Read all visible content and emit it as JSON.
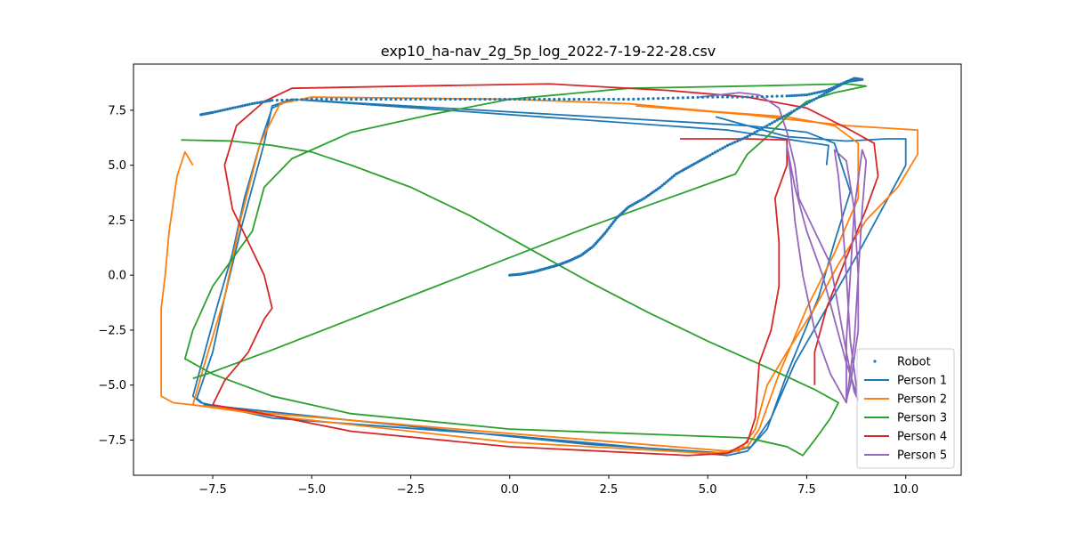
{
  "chart_data": {
    "type": "line",
    "title": "exp10_ha-nav_2g_5p_log_2022-7-19-22-28.csv",
    "xlabel": "",
    "ylabel": "",
    "xlim": [
      -9.5,
      11.4
    ],
    "ylim": [
      -9.1,
      9.6
    ],
    "xticks": [
      -7.5,
      -5.0,
      -2.5,
      0.0,
      2.5,
      5.0,
      7.5,
      10.0
    ],
    "xtick_labels": [
      "−7.5",
      "−5.0",
      "−2.5",
      "0.0",
      "2.5",
      "5.0",
      "7.5",
      "10.0"
    ],
    "yticks": [
      -7.5,
      -5.0,
      -2.5,
      0.0,
      2.5,
      5.0,
      7.5
    ],
    "ytick_labels": [
      "−7.5",
      "−5.0",
      "−2.5",
      "0.0",
      "2.5",
      "5.0",
      "7.5"
    ],
    "grid": false,
    "legend_position": "lower-right",
    "series": [
      {
        "name": "Robot",
        "style": "points",
        "color": "#1f77b4",
        "points": [
          [
            0.0,
            0.0
          ],
          [
            0.3,
            0.05
          ],
          [
            0.6,
            0.15
          ],
          [
            0.9,
            0.3
          ],
          [
            1.2,
            0.45
          ],
          [
            1.5,
            0.65
          ],
          [
            1.8,
            0.9
          ],
          [
            2.1,
            1.3
          ],
          [
            2.4,
            1.9
          ],
          [
            2.7,
            2.6
          ],
          [
            3.0,
            3.1
          ],
          [
            3.4,
            3.5
          ],
          [
            3.8,
            4.0
          ],
          [
            4.2,
            4.6
          ],
          [
            4.6,
            5.0
          ],
          [
            5.0,
            5.4
          ],
          [
            5.5,
            5.9
          ],
          [
            6.0,
            6.3
          ],
          [
            6.5,
            6.8
          ],
          [
            7.0,
            7.3
          ],
          [
            7.5,
            7.8
          ],
          [
            8.0,
            8.3
          ],
          [
            8.4,
            8.7
          ],
          [
            8.7,
            8.95
          ],
          [
            8.9,
            8.9
          ],
          [
            8.5,
            8.8
          ],
          [
            8.0,
            8.4
          ],
          [
            7.5,
            8.2
          ],
          [
            7.0,
            8.15
          ],
          [
            6.0,
            8.1
          ],
          [
            5.0,
            8.1
          ],
          [
            4.0,
            8.05
          ],
          [
            3.0,
            8.0
          ],
          [
            2.0,
            8.0
          ],
          [
            1.0,
            8.0
          ],
          [
            0.0,
            8.0
          ],
          [
            -1.0,
            8.0
          ],
          [
            -2.0,
            8.0
          ],
          [
            -3.0,
            8.0
          ],
          [
            -4.0,
            8.0
          ],
          [
            -5.0,
            8.0
          ],
          [
            -6.0,
            7.95
          ],
          [
            -6.5,
            7.8
          ],
          [
            -7.0,
            7.6
          ],
          [
            -7.5,
            7.4
          ],
          [
            -7.8,
            7.3
          ]
        ]
      },
      {
        "name": "Person 1",
        "style": "line",
        "color": "#1f77b4",
        "points": [
          [
            8.0,
            5.0
          ],
          [
            8.05,
            5.9
          ],
          [
            7.5,
            6.05
          ],
          [
            5.5,
            6.6
          ],
          [
            -5.5,
            8.0
          ],
          [
            -6.0,
            7.6
          ],
          [
            -6.3,
            6.0
          ],
          [
            -6.7,
            3.5
          ],
          [
            -7.0,
            1.0
          ],
          [
            -7.4,
            -1.5
          ],
          [
            -7.7,
            -3.5
          ],
          [
            -8.0,
            -5.5
          ],
          [
            -7.8,
            -5.8
          ],
          [
            -6.0,
            -6.5
          ],
          [
            0.0,
            -7.3
          ],
          [
            5.5,
            -8.2
          ],
          [
            6.0,
            -8.0
          ],
          [
            6.5,
            -7.0
          ],
          [
            7.0,
            -4.5
          ],
          [
            7.8,
            -1.0
          ],
          [
            8.2,
            1.5
          ],
          [
            8.6,
            3.8
          ],
          [
            8.2,
            6.0
          ],
          [
            7.5,
            6.5
          ],
          [
            6.0,
            6.8
          ],
          [
            -5.5,
            8.0
          ],
          [
            -6.0,
            7.7
          ],
          [
            -6.2,
            6.0
          ],
          [
            -6.8,
            2.0
          ],
          [
            -7.2,
            -1.0
          ],
          [
            -7.5,
            -3.5
          ],
          [
            -7.9,
            -5.6
          ],
          [
            -7.7,
            -5.9
          ],
          [
            -4.0,
            -6.6
          ],
          [
            2.0,
            -7.7
          ],
          [
            5.5,
            -8.1
          ],
          [
            6.1,
            -7.8
          ],
          [
            6.6,
            -6.5
          ],
          [
            7.2,
            -4.0
          ],
          [
            8.0,
            -1.5
          ],
          [
            8.8,
            1.0
          ],
          [
            9.4,
            3.0
          ],
          [
            10.0,
            5.0
          ],
          [
            10.0,
            6.2
          ],
          [
            9.5,
            6.2
          ],
          [
            8.5,
            6.1
          ],
          [
            7.0,
            6.3
          ],
          [
            5.2,
            7.2
          ]
        ]
      },
      {
        "name": "Person 2",
        "style": "line",
        "color": "#ff7f0e",
        "points": [
          [
            -8.0,
            5.0
          ],
          [
            -8.2,
            5.6
          ],
          [
            -8.4,
            4.5
          ],
          [
            -8.6,
            2.0
          ],
          [
            -8.7,
            0.0
          ],
          [
            -8.8,
            -1.5
          ],
          [
            -8.8,
            -3.5
          ],
          [
            -8.8,
            -5.5
          ],
          [
            -8.5,
            -5.8
          ],
          [
            -6.0,
            -6.3
          ],
          [
            0.0,
            -7.2
          ],
          [
            5.5,
            -8.0
          ],
          [
            6.0,
            -7.8
          ],
          [
            6.3,
            -7.0
          ],
          [
            6.8,
            -4.5
          ],
          [
            7.5,
            -1.5
          ],
          [
            8.2,
            1.0
          ],
          [
            8.8,
            3.5
          ],
          [
            8.8,
            6.0
          ],
          [
            8.2,
            6.8
          ],
          [
            7.0,
            7.2
          ],
          [
            3.2,
            7.7
          ],
          [
            6.0,
            7.3
          ],
          [
            8.5,
            6.8
          ],
          [
            10.3,
            6.6
          ],
          [
            10.3,
            5.5
          ],
          [
            9.8,
            4.0
          ],
          [
            9.0,
            2.5
          ],
          [
            8.3,
            0.5
          ],
          [
            7.7,
            -1.5
          ],
          [
            7.0,
            -3.5
          ],
          [
            6.5,
            -5.0
          ],
          [
            6.2,
            -7.0
          ],
          [
            5.8,
            -8.0
          ],
          [
            5.0,
            -8.1
          ],
          [
            0.0,
            -7.6
          ],
          [
            -6.0,
            -6.4
          ],
          [
            -8.0,
            -5.9
          ],
          [
            -7.7,
            -4.0
          ],
          [
            -7.2,
            -1.0
          ],
          [
            -6.8,
            2.5
          ],
          [
            -6.3,
            6.0
          ],
          [
            -5.8,
            7.8
          ],
          [
            -5.0,
            8.1
          ],
          [
            0.0,
            8.0
          ],
          [
            3.0,
            7.8
          ],
          [
            6.0,
            7.3
          ]
        ]
      },
      {
        "name": "Person 3",
        "style": "line",
        "color": "#2ca02c",
        "points": [
          [
            -8.3,
            6.15
          ],
          [
            -7.0,
            6.1
          ],
          [
            -6.0,
            5.9
          ],
          [
            -5.0,
            5.6
          ],
          [
            -4.0,
            5.0
          ],
          [
            -2.5,
            4.0
          ],
          [
            -1.0,
            2.7
          ],
          [
            0.5,
            1.2
          ],
          [
            2.0,
            -0.3
          ],
          [
            3.5,
            -1.7
          ],
          [
            5.0,
            -3.0
          ],
          [
            6.5,
            -4.2
          ],
          [
            7.7,
            -5.2
          ],
          [
            8.3,
            -5.8
          ],
          [
            8.1,
            -6.5
          ],
          [
            7.7,
            -7.5
          ],
          [
            7.4,
            -8.2
          ],
          [
            7.0,
            -7.8
          ],
          [
            6.5,
            -7.6
          ],
          [
            6.0,
            -7.4
          ],
          [
            0.0,
            -7.0
          ],
          [
            -4.0,
            -6.3
          ],
          [
            -6.0,
            -5.5
          ],
          [
            -7.5,
            -4.5
          ],
          [
            -8.2,
            -3.8
          ],
          [
            -8.0,
            -2.5
          ],
          [
            -7.5,
            -0.5
          ],
          [
            -6.5,
            2.0
          ],
          [
            -6.2,
            4.0
          ],
          [
            -5.5,
            5.3
          ],
          [
            -4.0,
            6.5
          ],
          [
            -2.0,
            7.3
          ],
          [
            0.0,
            8.0
          ],
          [
            3.0,
            8.5
          ],
          [
            6.0,
            8.6
          ],
          [
            8.5,
            8.7
          ],
          [
            9.0,
            8.6
          ],
          [
            8.2,
            8.3
          ],
          [
            7.5,
            7.9
          ],
          [
            7.0,
            7.2
          ],
          [
            6.5,
            6.3
          ],
          [
            6.0,
            5.5
          ],
          [
            5.7,
            4.6
          ],
          [
            4.0,
            3.5
          ],
          [
            2.0,
            2.2
          ],
          [
            0.0,
            0.8
          ],
          [
            -2.0,
            -0.6
          ],
          [
            -4.0,
            -2.0
          ],
          [
            -6.0,
            -3.4
          ],
          [
            -7.5,
            -4.4
          ],
          [
            -8.0,
            -4.7
          ]
        ]
      },
      {
        "name": "Person 4",
        "style": "line",
        "color": "#d62728",
        "points": [
          [
            4.3,
            6.2
          ],
          [
            6.0,
            6.2
          ],
          [
            7.0,
            6.15
          ],
          [
            7.0,
            5.0
          ],
          [
            6.7,
            3.5
          ],
          [
            6.8,
            1.5
          ],
          [
            6.8,
            -0.5
          ],
          [
            6.6,
            -2.5
          ],
          [
            6.3,
            -4.0
          ],
          [
            6.2,
            -6.5
          ],
          [
            6.0,
            -7.6
          ],
          [
            5.5,
            -8.1
          ],
          [
            4.5,
            -8.2
          ],
          [
            0.0,
            -7.8
          ],
          [
            -4.0,
            -7.1
          ],
          [
            -6.5,
            -6.2
          ],
          [
            -7.5,
            -5.9
          ],
          [
            -7.2,
            -4.8
          ],
          [
            -6.6,
            -3.5
          ],
          [
            -6.2,
            -2.0
          ],
          [
            -6.0,
            -1.5
          ],
          [
            -6.2,
            0.0
          ],
          [
            -6.6,
            1.5
          ],
          [
            -7.0,
            3.0
          ],
          [
            -7.2,
            5.0
          ],
          [
            -6.9,
            6.8
          ],
          [
            -6.2,
            7.9
          ],
          [
            -5.5,
            8.5
          ],
          [
            -2.5,
            8.6
          ],
          [
            1.0,
            8.7
          ],
          [
            4.0,
            8.4
          ],
          [
            6.0,
            8.1
          ],
          [
            7.5,
            7.6
          ],
          [
            8.5,
            6.7
          ],
          [
            9.2,
            6.0
          ],
          [
            9.3,
            4.5
          ],
          [
            9.0,
            3.0
          ],
          [
            8.5,
            0.8
          ],
          [
            8.0,
            -1.5
          ],
          [
            7.7,
            -3.5
          ],
          [
            7.7,
            -5.0
          ]
        ]
      },
      {
        "name": "Person 5",
        "style": "line",
        "color": "#9467bd",
        "points": [
          [
            4.8,
            8.1
          ],
          [
            5.8,
            8.3
          ],
          [
            6.3,
            8.2
          ],
          [
            6.8,
            7.6
          ],
          [
            7.0,
            6.5
          ],
          [
            7.2,
            5.0
          ],
          [
            7.3,
            3.5
          ],
          [
            7.7,
            2.0
          ],
          [
            8.1,
            0.5
          ],
          [
            8.3,
            -1.5
          ],
          [
            8.5,
            -3.5
          ],
          [
            8.7,
            -5.3
          ],
          [
            8.8,
            -5.7
          ],
          [
            8.6,
            -3.0
          ],
          [
            8.5,
            0.0
          ],
          [
            8.4,
            2.5
          ],
          [
            8.3,
            4.5
          ],
          [
            8.2,
            5.7
          ],
          [
            8.5,
            5.2
          ],
          [
            8.7,
            3.0
          ],
          [
            8.8,
            0.0
          ],
          [
            8.8,
            -2.5
          ],
          [
            8.6,
            -5.0
          ],
          [
            8.5,
            -5.7
          ],
          [
            8.5,
            -3.0
          ],
          [
            8.6,
            0.0
          ],
          [
            8.7,
            3.0
          ],
          [
            8.9,
            5.7
          ],
          [
            9.0,
            5.2
          ],
          [
            8.9,
            3.0
          ],
          [
            8.8,
            0.0
          ],
          [
            8.7,
            -3.0
          ],
          [
            8.5,
            -5.8
          ],
          [
            8.1,
            -4.5
          ],
          [
            7.7,
            -2.5
          ],
          [
            7.4,
            0.0
          ],
          [
            7.2,
            2.5
          ],
          [
            7.1,
            4.5
          ],
          [
            7.0,
            5.9
          ],
          [
            7.2,
            4.0
          ],
          [
            7.5,
            2.0
          ],
          [
            7.9,
            0.0
          ],
          [
            8.2,
            -2.0
          ],
          [
            8.5,
            -4.0
          ],
          [
            8.8,
            -5.6
          ]
        ]
      }
    ]
  }
}
